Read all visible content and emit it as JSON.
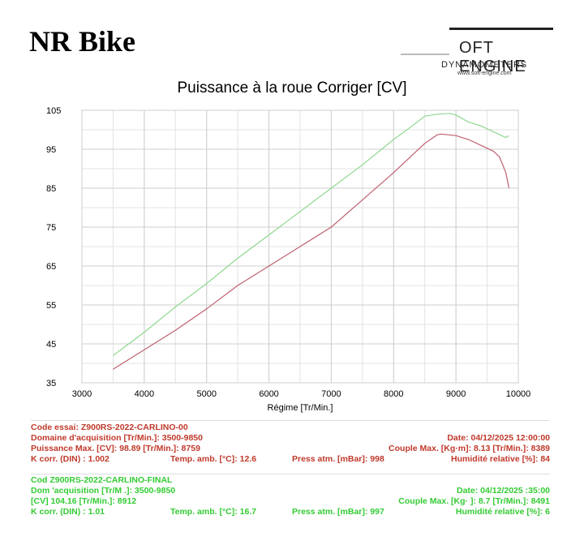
{
  "brand": "NR Bike",
  "logo": {
    "line1": "OFT ENGINE",
    "line2": "DYNAMOMETERS",
    "line3": "www.soft-engine.com"
  },
  "chart_data": {
    "type": "line",
    "title": "Puissance à la roue Corriger [CV]",
    "xlabel": "Régime [Tr/Min.]",
    "ylabel": "",
    "xlim": [
      3000,
      10000
    ],
    "ylim": [
      35,
      105
    ],
    "xticks": [
      3000,
      4000,
      5000,
      6000,
      7000,
      8000,
      9000,
      10000
    ],
    "yticks": [
      35,
      45,
      55,
      65,
      75,
      85,
      95,
      105
    ],
    "grid": true,
    "legend": "none",
    "series": [
      {
        "color": "#8fd88f",
        "x": [
          3500,
          4000,
          4500,
          5000,
          5500,
          6000,
          6500,
          7000,
          7500,
          8000,
          8300,
          8500,
          8700,
          8900,
          9000,
          9200,
          9400,
          9600,
          9800,
          9850
        ],
        "y": [
          42,
          48,
          54.5,
          60.5,
          67,
          73,
          79,
          85,
          91,
          97.5,
          101,
          103.5,
          104,
          104.2,
          103.8,
          102,
          101,
          99.5,
          98,
          98.5
        ]
      },
      {
        "color": "#c06070",
        "x": [
          3500,
          4000,
          4500,
          5000,
          5500,
          6000,
          6500,
          7000,
          7500,
          8000,
          8300,
          8500,
          8700,
          8760,
          9000,
          9200,
          9400,
          9600,
          9700,
          9800,
          9850
        ],
        "y": [
          38.5,
          43.5,
          48.5,
          54,
          60,
          65,
          70,
          75,
          82,
          89,
          93.5,
          96.5,
          98.7,
          98.9,
          98.5,
          97.5,
          96,
          94.5,
          93,
          89,
          85
        ]
      }
    ]
  },
  "test1": {
    "code": "Code essai:  Z900RS-2022-CARLINO-00",
    "domaine": "Domaine d'acquisition [Tr/Min.]: 3500-9850",
    "date": "Date: 04/12/2025   12:00:00",
    "puissance": "Puissance Max. [CV]: 98.89   [Tr/Min.]: 8759",
    "couple": "Couple Max. [Kg·m]: 8.13   [Tr/Min.]: 8389",
    "kcorr": "K corr. (DIN) : 1.002",
    "temp": "Temp. amb. [°C]: 12.6",
    "press": "Press atm. [mBar]: 998",
    "humid": "Humidité relative [%]: 84"
  },
  "test2": {
    "code": "Cod         Z900RS-2022-CARLINO-FINAL",
    "domaine": "Dom        'acquisition [Tr/M  .]: 3500-9850",
    "date": "Date: 04/12/2025     :35:00",
    "puissance": "                      [CV]  104.16  [Tr/Min.]: 8912",
    "couple": "Couple Max. [Kg·  ]: 8.7   [Tr/Min.]: 8491",
    "kcorr": "K corr. (DIN) : 1.01",
    "temp": "Temp. amb. [°C]: 16.7",
    "press": "Press atm. [mBar]: 997",
    "humid": "Humidité relative [%]: 6"
  }
}
